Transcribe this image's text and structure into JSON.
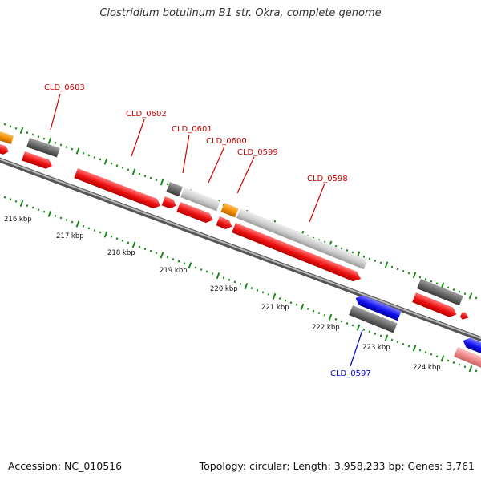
{
  "title": "Clostridium botulinum B1 str. Okra, complete genome",
  "footer": {
    "accession": "Accession: NC_010516",
    "summary": "Topology: circular; Length: 3,958,233 bp; Genes: 3,761"
  },
  "colors": {
    "forward_cds": "#ee1111",
    "forward_cds_light": "#ee8888",
    "reverse_cds": "#1111ee",
    "gene_gray": "#666666",
    "gene_light_gray": "#cccccc",
    "gene_orange": "#f08c00",
    "axis_ticks": "#1a8a1a",
    "axis_line": "#888888",
    "forward_label": "#cc0000",
    "reverse_label": "#0000cc"
  },
  "scale_labels": [
    "216 kbp",
    "217 kbp",
    "218 kbp",
    "219 kbp",
    "220 kbp",
    "221 kbp",
    "222 kbp",
    "223 kbp",
    "224 kbp"
  ],
  "gene_labels": {
    "forward": [
      "CLD_0603",
      "CLD_0602",
      "CLD_0601",
      "CLD_0600",
      "CLD_0599",
      "CLD_0598"
    ],
    "reverse": [
      "CLD_0597"
    ]
  }
}
